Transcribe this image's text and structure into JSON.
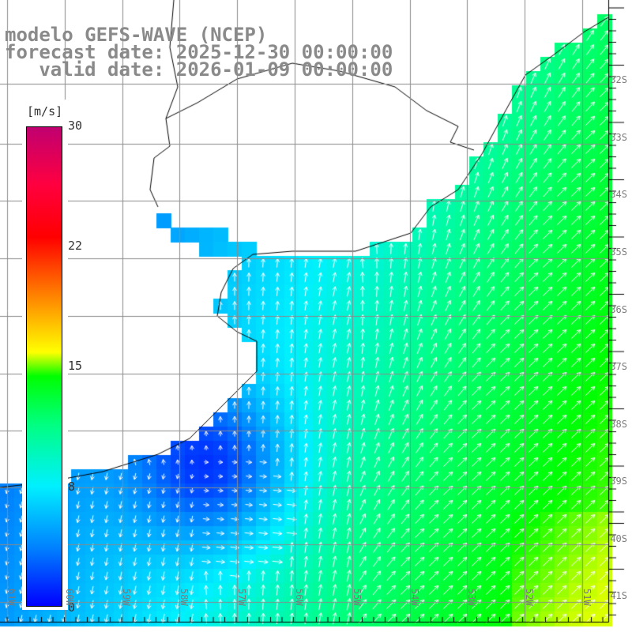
{
  "title": {
    "line1": "modelo GEFS-WAVE (NCEP)",
    "line2": "forecast date: 2025-12-30 00:00:00",
    "line3": "   valid date: 2026-01-09 00:00:00"
  },
  "colorbar": {
    "unit": "[m/s]",
    "ticks": [
      "30",
      "22",
      "15",
      "8",
      "0"
    ],
    "min": 0,
    "max": 30
  },
  "lat_labels": [
    "32S",
    "33S",
    "34S",
    "35S",
    "36S",
    "37S",
    "38S",
    "39S",
    "40S",
    "41S"
  ],
  "lon_labels": [
    "61W",
    "60W",
    "59W",
    "58W",
    "57W",
    "56W",
    "55W",
    "54W",
    "53W",
    "52W",
    "51W"
  ],
  "colors": {
    "land": "#ffffff",
    "grid": "#8a8a8a",
    "arrow": "#ffffff",
    "coast": "#000000"
  }
}
